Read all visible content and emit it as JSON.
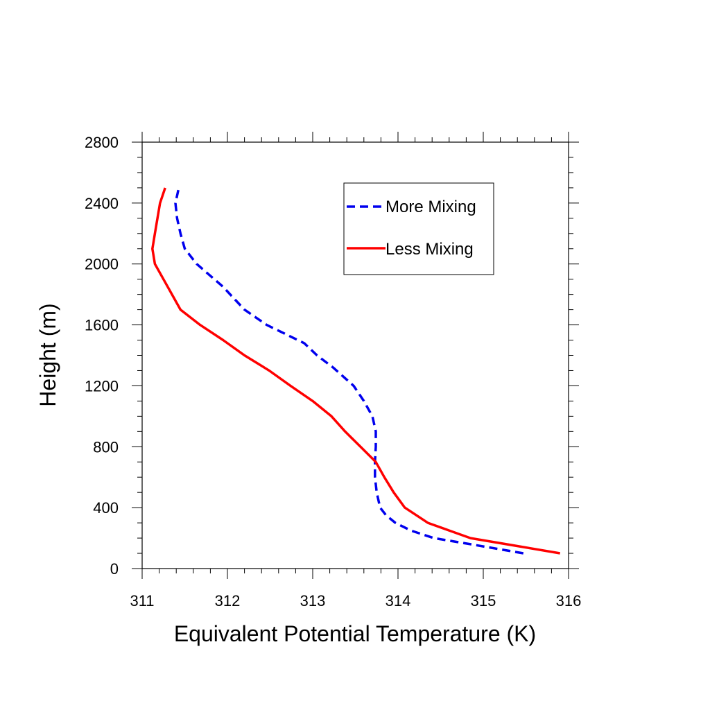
{
  "chart_data": {
    "type": "line",
    "title": "",
    "xlabel": "Equivalent Potential Temperature (K)",
    "ylabel": "Height (m)",
    "xlim": [
      311,
      316
    ],
    "ylim": [
      0,
      2800
    ],
    "x_ticks": [
      "311",
      "312",
      "313",
      "314",
      "315",
      "316"
    ],
    "y_ticks": [
      "0",
      "400",
      "800",
      "1200",
      "1600",
      "2000",
      "2400",
      "2800"
    ],
    "grid": false,
    "legend_position": "top-right",
    "series": [
      {
        "name": "More Mixing",
        "color": "#0000ee",
        "dash": "dashed",
        "points": [
          [
            315.47,
            100
          ],
          [
            314.85,
            160
          ],
          [
            314.42,
            200
          ],
          [
            314.15,
            250
          ],
          [
            313.97,
            300
          ],
          [
            313.86,
            350
          ],
          [
            313.79,
            400
          ],
          [
            313.75,
            500
          ],
          [
            313.73,
            600
          ],
          [
            313.73,
            700
          ],
          [
            313.74,
            800
          ],
          [
            313.74,
            900
          ],
          [
            313.7,
            1000
          ],
          [
            313.6,
            1100
          ],
          [
            313.48,
            1200
          ],
          [
            313.24,
            1320
          ],
          [
            313.05,
            1400
          ],
          [
            312.9,
            1480
          ],
          [
            312.46,
            1600
          ],
          [
            312.2,
            1700
          ],
          [
            311.95,
            1850
          ],
          [
            311.64,
            2000
          ],
          [
            311.5,
            2100
          ],
          [
            311.45,
            2200
          ],
          [
            311.41,
            2300
          ],
          [
            311.39,
            2400
          ],
          [
            311.43,
            2500
          ]
        ]
      },
      {
        "name": "Less Mixing",
        "color": "#ff0000",
        "dash": "solid",
        "points": [
          [
            315.9,
            100
          ],
          [
            315.38,
            150
          ],
          [
            314.85,
            200
          ],
          [
            314.6,
            250
          ],
          [
            314.35,
            300
          ],
          [
            314.08,
            400
          ],
          [
            313.95,
            500
          ],
          [
            313.84,
            600
          ],
          [
            313.74,
            700
          ],
          [
            313.56,
            800
          ],
          [
            313.38,
            900
          ],
          [
            313.22,
            1000
          ],
          [
            313.0,
            1100
          ],
          [
            312.74,
            1200
          ],
          [
            312.49,
            1300
          ],
          [
            312.2,
            1400
          ],
          [
            311.95,
            1500
          ],
          [
            311.68,
            1600
          ],
          [
            311.45,
            1700
          ],
          [
            311.3,
            1850
          ],
          [
            311.15,
            2000
          ],
          [
            311.12,
            2100
          ],
          [
            311.15,
            2200
          ],
          [
            311.18,
            2300
          ],
          [
            311.21,
            2400
          ],
          [
            311.27,
            2500
          ]
        ]
      }
    ]
  }
}
